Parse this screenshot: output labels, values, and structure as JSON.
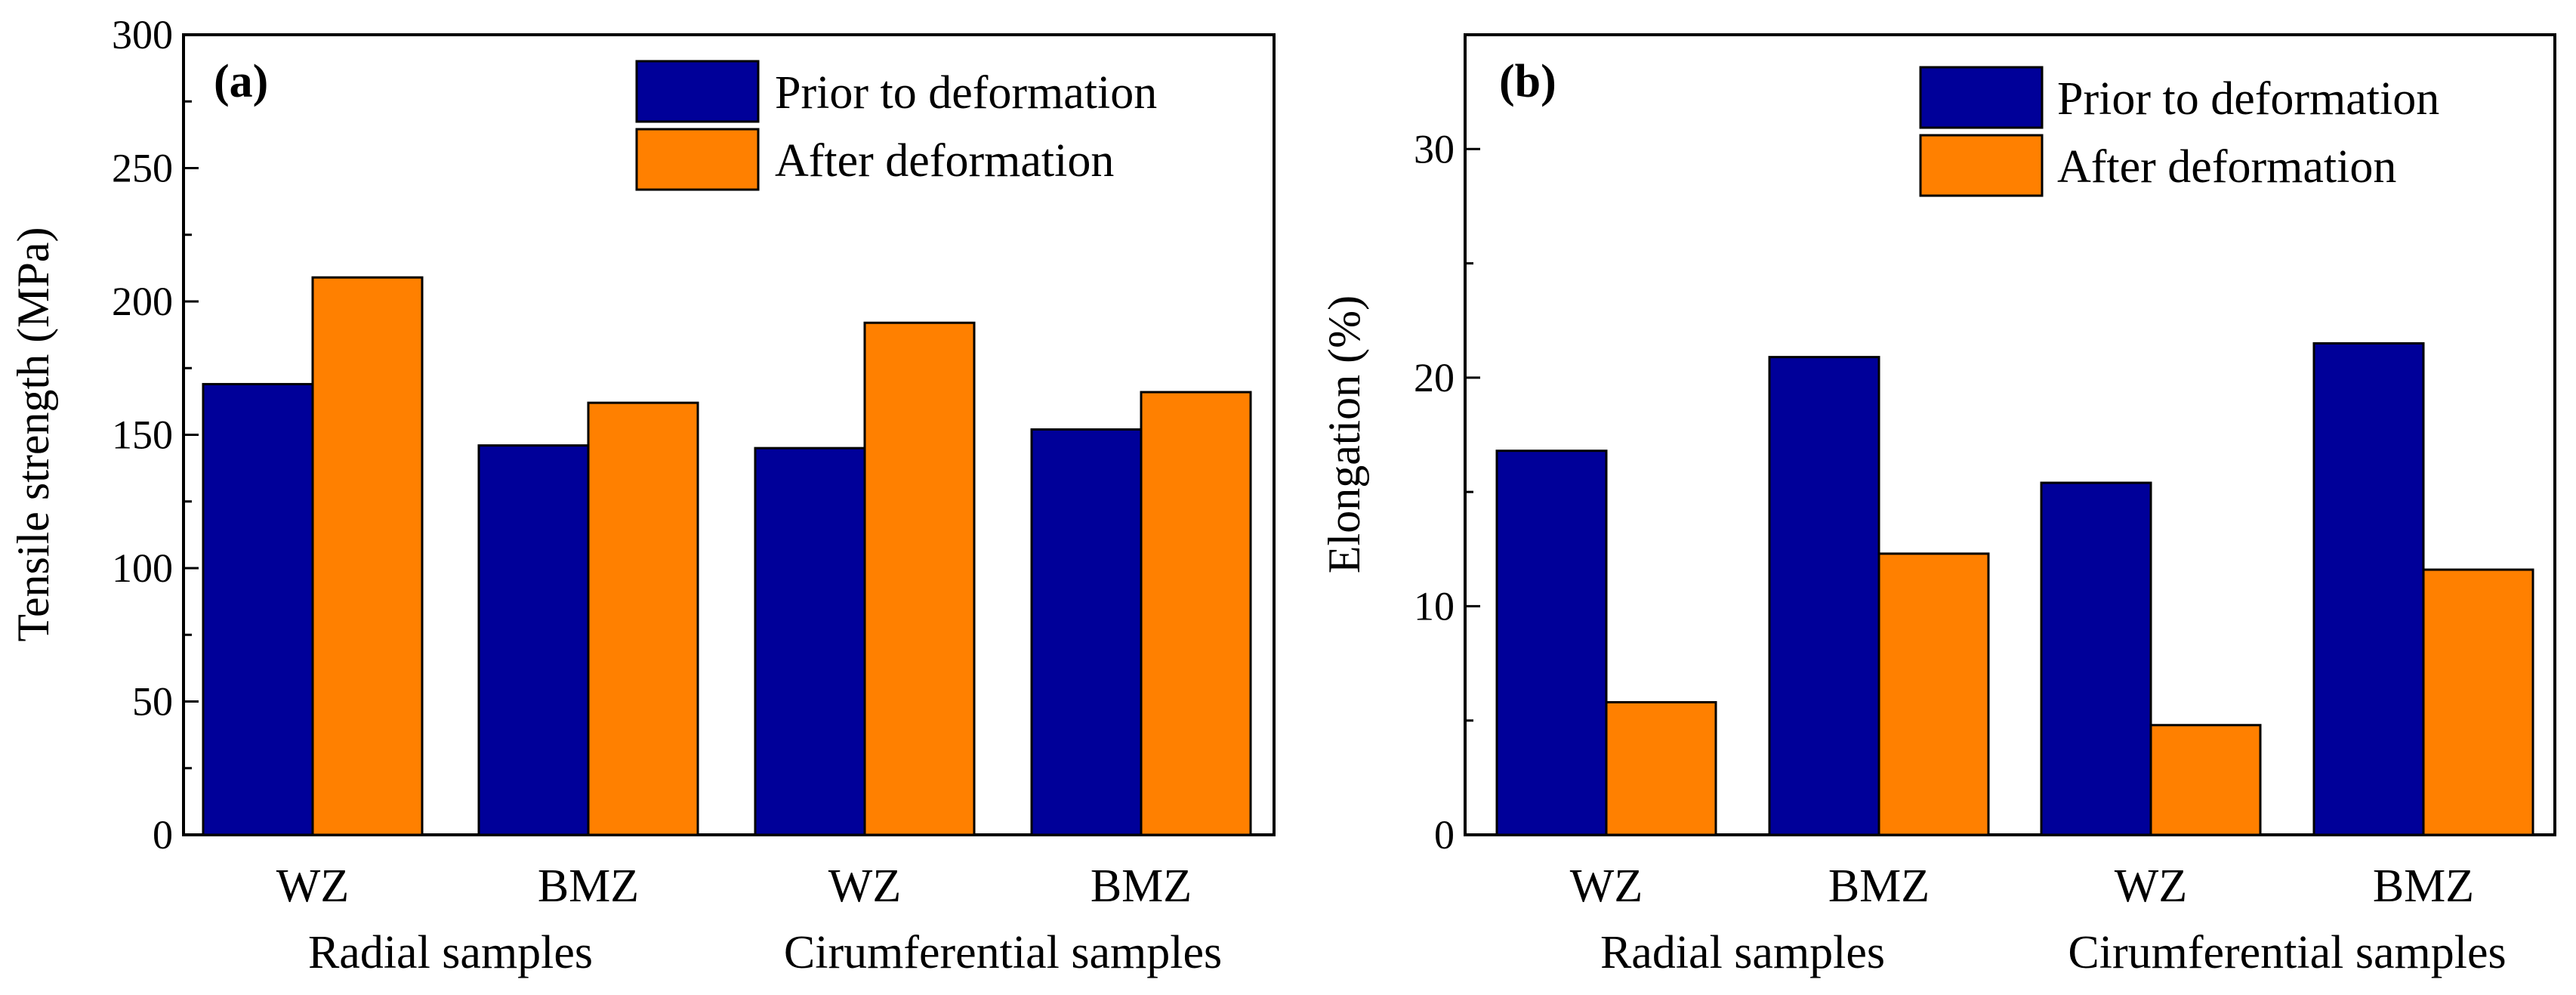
{
  "chart_data": [
    {
      "type": "bar",
      "panel_label": "(a)",
      "ylabel": "Tensile strength (MPa)",
      "ylim": [
        0,
        300
      ],
      "yticks": [
        0,
        50,
        100,
        150,
        200,
        250,
        300
      ],
      "categories": [
        "WZ",
        "BMZ",
        "WZ",
        "BMZ"
      ],
      "groups": [
        "Radial samples",
        "Cirumferential samples"
      ],
      "series": [
        {
          "name": "Prior to deformation",
          "color": "#000099",
          "values": [
            169,
            146,
            145,
            152
          ]
        },
        {
          "name": "After deformation",
          "color": "#FF8000",
          "values": [
            209,
            162,
            192,
            166
          ]
        }
      ],
      "legend_position": "top-right",
      "grid": false
    },
    {
      "type": "bar",
      "panel_label": "(b)",
      "ylabel": "Elongation (%)",
      "ylim": [
        0,
        35
      ],
      "yticks": [
        0,
        10,
        20,
        30
      ],
      "categories": [
        "WZ",
        "BMZ",
        "WZ",
        "BMZ"
      ],
      "groups": [
        "Radial samples",
        "Cirumferential samples"
      ],
      "series": [
        {
          "name": "Prior to deformation",
          "color": "#000099",
          "values": [
            16.8,
            20.9,
            15.4,
            21.5
          ]
        },
        {
          "name": "After deformation",
          "color": "#FF8000",
          "values": [
            5.8,
            12.3,
            4.8,
            11.6
          ]
        }
      ],
      "legend_position": "top-right",
      "grid": false
    }
  ]
}
